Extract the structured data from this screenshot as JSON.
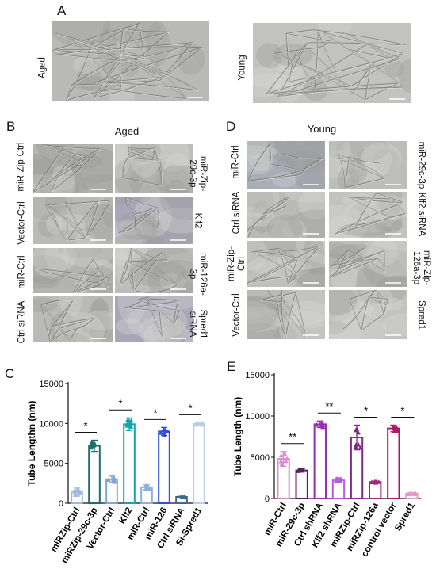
{
  "panel_letters": {
    "a": "A",
    "b": "B",
    "c": "C",
    "d": "D",
    "e": "E"
  },
  "panel_a": {
    "left_label": "Aged",
    "right_label": "Young"
  },
  "panel_b": {
    "title": "Aged",
    "left_labels": [
      "miR-Zip-Ctrl",
      "Vector-Ctrl",
      "miR-Ctrl",
      "Ctrl siRNA"
    ],
    "right_labels": [
      "miR-Zip-29c-3p",
      "Klf2",
      "miR-126a-3p",
      "Spred1 siRNA"
    ]
  },
  "panel_d": {
    "title": "Young",
    "left_labels": [
      "miR-Ctrl",
      "Ctrl siRNA",
      "miR-Zip-Ctrl",
      "Vector-Ctrl"
    ],
    "right_labels": [
      "miR-29c-3p",
      "Klf2 siRNA",
      "miR-Zip-126a-3p",
      "Spred1"
    ]
  },
  "chart_data": [
    {
      "panel": "C",
      "type": "bar",
      "ylabel": "Tube Lengthn (nm)",
      "ylim": [
        0,
        15000
      ],
      "yticks": [
        0,
        5000,
        10000,
        15000
      ],
      "categories": [
        "miRZip-Ctrl",
        "miRZip-29c-3p",
        "Vector-Ctrl",
        "Klf2",
        "miR-Ctrl",
        "miR-126",
        "Ctrl siRNA",
        "Si-Spred1"
      ],
      "values": [
        1400,
        7200,
        3000,
        9900,
        2000,
        9000,
        800,
        9950
      ],
      "errors": [
        500,
        700,
        400,
        800,
        300,
        500,
        80,
        150
      ],
      "colors": [
        "#9fb7d9",
        "#1e6e6e",
        "#7fa6d6",
        "#17a3b0",
        "#8fb0dc",
        "#2e4fd6",
        "#3b6a8c",
        "#b9cfe8"
      ],
      "significance": [
        [
          0,
          1,
          "*"
        ],
        [
          2,
          3,
          "*"
        ],
        [
          4,
          5,
          "*"
        ],
        [
          6,
          7,
          "*"
        ]
      ]
    },
    {
      "panel": "E",
      "type": "bar",
      "ylabel": "Tube Length (nm)",
      "ylim": [
        0,
        15000
      ],
      "yticks": [
        0,
        5000,
        10000,
        15000
      ],
      "categories": [
        "miR-Ctrl",
        "miR-29c-3p",
        "Ctrl shRNA",
        "Klf2 shRNA",
        "miRZip-Ctrl",
        "miRZip-126a",
        "control vector",
        "Spred1"
      ],
      "values": [
        4800,
        3400,
        9000,
        2200,
        7400,
        2000,
        8500,
        600
      ],
      "errors": [
        900,
        200,
        400,
        300,
        1500,
        100,
        400,
        100
      ],
      "colors": [
        "#d98ad0",
        "#5a1f63",
        "#9b2db3",
        "#b85ce0",
        "#7d2a86",
        "#9e2a72",
        "#b0186e",
        "#e29acd"
      ],
      "significance": [
        [
          0,
          1,
          "**"
        ],
        [
          2,
          3,
          "**"
        ],
        [
          4,
          5,
          "*"
        ],
        [
          6,
          7,
          "*"
        ]
      ]
    }
  ]
}
